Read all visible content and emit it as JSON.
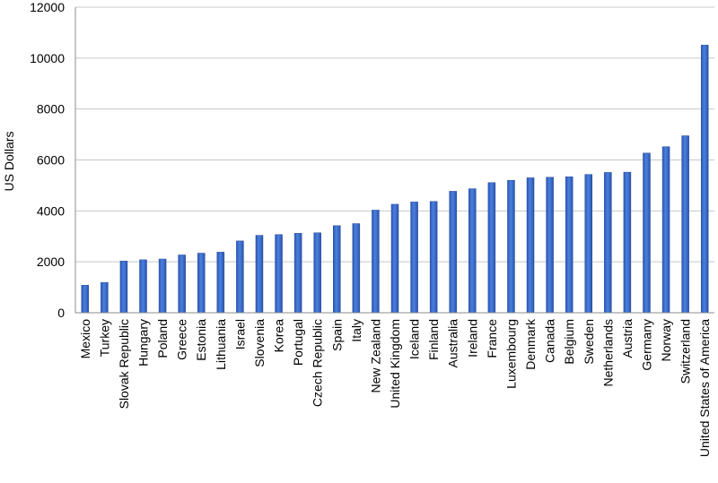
{
  "chart_data": {
    "type": "bar",
    "title": "",
    "xlabel": "",
    "ylabel": "US Dollars",
    "ylim": [
      0,
      12000
    ],
    "yticks": [
      "0",
      "2000",
      "4000",
      "6000",
      "8000",
      "10000",
      "12000"
    ],
    "grid": true,
    "legend": "none",
    "bar_color": "#3b6fd0",
    "categories": [
      "Mexico",
      "Turkey",
      "Slovak Republic",
      "Hungary",
      "Poland",
      "Greece",
      "Estonia",
      "Lithuania",
      "Israel",
      "Slovenia",
      "Korea",
      "Portugal",
      "Czech Republic",
      "Spain",
      "Italy",
      "New Zealand",
      "United Kingdom",
      "Iceland",
      "Finland",
      "Australia",
      "Ireland",
      "France",
      "Luxembourg",
      "Denmark",
      "Canada",
      "Belgium",
      "Sweden",
      "Netherlands",
      "Austria",
      "Germany",
      "Norway",
      "Switzerland",
      "United States of America"
    ],
    "values": [
      1080,
      1190,
      2030,
      2080,
      2110,
      2270,
      2340,
      2380,
      2820,
      3040,
      3070,
      3120,
      3140,
      3420,
      3500,
      4030,
      4260,
      4350,
      4370,
      4770,
      4870,
      5110,
      5200,
      5300,
      5320,
      5340,
      5430,
      5510,
      5520,
      6270,
      6520,
      6950,
      10510
    ]
  }
}
